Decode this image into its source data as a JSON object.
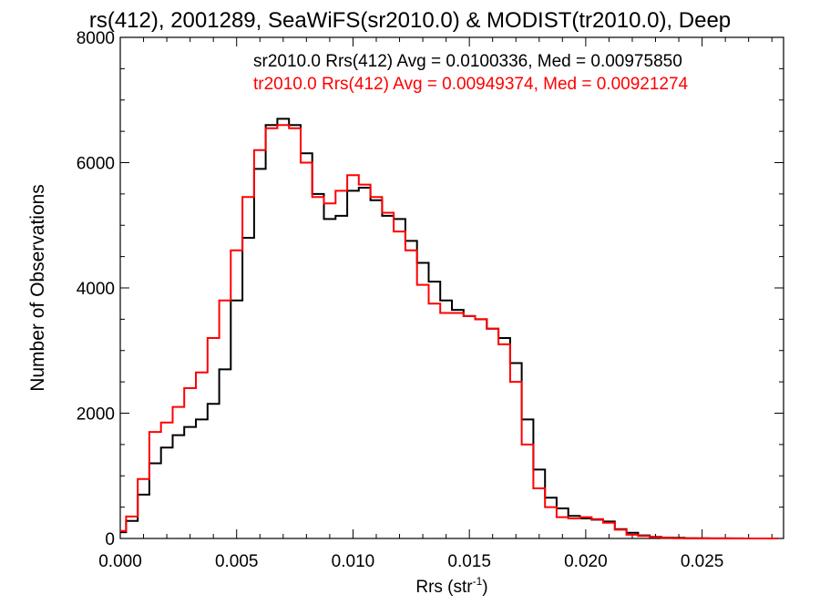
{
  "chart_data": {
    "type": "line",
    "title": "rs(412), 2001289, SeaWiFS(sr2010.0) & MODIST(tr2010.0), Deep",
    "xlabel_main": "Rrs (str",
    "xlabel_sup": "-1",
    "xlabel_close": ")",
    "ylabel": "Number of Observations",
    "xlim": [
      0.0,
      0.0285
    ],
    "ylim": [
      0,
      8000
    ],
    "x_ticks": [
      {
        "value": 0.0,
        "label": "0.000"
      },
      {
        "value": 0.005,
        "label": "0.005"
      },
      {
        "value": 0.01,
        "label": "0.010"
      },
      {
        "value": 0.015,
        "label": "0.015"
      },
      {
        "value": 0.02,
        "label": "0.020"
      },
      {
        "value": 0.025,
        "label": "0.025"
      }
    ],
    "y_ticks": [
      {
        "value": 0,
        "label": "0"
      },
      {
        "value": 2000,
        "label": "2000"
      },
      {
        "value": 4000,
        "label": "4000"
      },
      {
        "value": 6000,
        "label": "6000"
      },
      {
        "value": 8000,
        "label": "8000"
      }
    ],
    "grid": false,
    "legend_placement": "top-right",
    "series": [
      {
        "name": "sr2010.0 Rrs(412) Avg = 0.0100336, Med = 0.00975850",
        "color": "#000000",
        "x": [
          0.0,
          0.0005,
          0.001,
          0.0015,
          0.002,
          0.0025,
          0.003,
          0.0035,
          0.004,
          0.0045,
          0.005,
          0.0055,
          0.006,
          0.0065,
          0.007,
          0.0075,
          0.008,
          0.0085,
          0.009,
          0.0095,
          0.01,
          0.0105,
          0.011,
          0.0115,
          0.012,
          0.0125,
          0.013,
          0.0135,
          0.014,
          0.0145,
          0.015,
          0.0155,
          0.016,
          0.0165,
          0.017,
          0.0175,
          0.018,
          0.0185,
          0.019,
          0.0195,
          0.02,
          0.0205,
          0.021,
          0.0215,
          0.022,
          0.0225,
          0.023,
          0.0235,
          0.024,
          0.0245,
          0.025,
          0.0255,
          0.026,
          0.0265,
          0.027,
          0.0275,
          0.028
        ],
        "values": [
          100,
          280,
          700,
          1200,
          1450,
          1650,
          1780,
          1900,
          2150,
          2700,
          3800,
          4800,
          5900,
          6600,
          6700,
          6600,
          6150,
          5500,
          5100,
          5150,
          5550,
          5600,
          5400,
          5150,
          5100,
          4750,
          4400,
          4100,
          3800,
          3650,
          3550,
          3500,
          3350,
          3200,
          2800,
          1900,
          1100,
          650,
          480,
          360,
          320,
          300,
          270,
          150,
          90,
          50,
          25,
          15,
          10,
          5,
          3,
          2,
          1,
          1,
          0,
          0,
          0
        ]
      },
      {
        "name": "tr2010.0 Rrs(412) Avg = 0.00949374, Med = 0.00921274",
        "color": "#ff0000",
        "x": [
          0.0,
          0.0005,
          0.001,
          0.0015,
          0.002,
          0.0025,
          0.003,
          0.0035,
          0.004,
          0.0045,
          0.005,
          0.0055,
          0.006,
          0.0065,
          0.007,
          0.0075,
          0.008,
          0.0085,
          0.009,
          0.0095,
          0.01,
          0.0105,
          0.011,
          0.0115,
          0.012,
          0.0125,
          0.013,
          0.0135,
          0.014,
          0.0145,
          0.015,
          0.0155,
          0.016,
          0.0165,
          0.017,
          0.0175,
          0.018,
          0.0185,
          0.019,
          0.0195,
          0.02,
          0.0205,
          0.021,
          0.0215,
          0.022,
          0.0225,
          0.023,
          0.0235,
          0.024,
          0.0245,
          0.025,
          0.0255,
          0.026,
          0.0265,
          0.027,
          0.0275,
          0.028
        ],
        "values": [
          120,
          350,
          950,
          1700,
          1850,
          2100,
          2400,
          2650,
          3200,
          3800,
          4600,
          5450,
          6200,
          6550,
          6600,
          6550,
          6000,
          5450,
          5350,
          5550,
          5800,
          5650,
          5450,
          5200,
          4900,
          4600,
          4050,
          3750,
          3600,
          3600,
          3550,
          3500,
          3350,
          3100,
          2500,
          1500,
          800,
          500,
          340,
          320,
          340,
          310,
          250,
          140,
          60,
          40,
          20,
          10,
          5,
          3,
          2,
          1,
          1,
          0,
          0,
          0,
          0
        ]
      }
    ]
  }
}
